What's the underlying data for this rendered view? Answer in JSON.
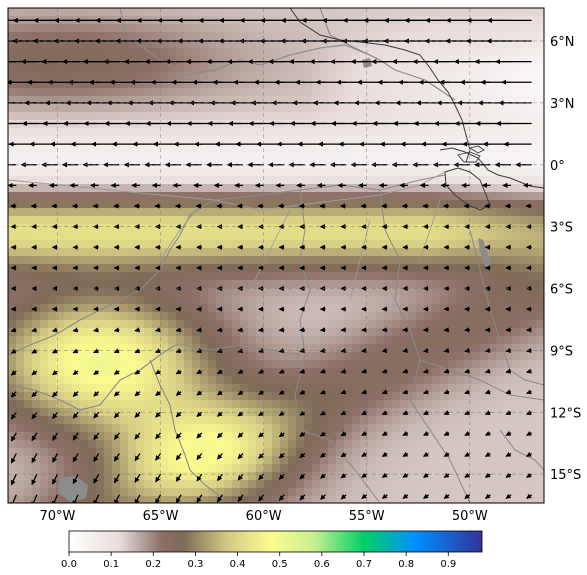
{
  "map": {
    "projection": "plate-carree",
    "extent": {
      "lon_min": -72.4,
      "lon_max": -46.4,
      "lat_min": -16.4,
      "lat_max": 7.6
    },
    "longitude_labels": [
      {
        "lon": -70,
        "label": "70°W"
      },
      {
        "lon": -65,
        "label": "65°W"
      },
      {
        "lon": -60,
        "label": "60°W"
      },
      {
        "lon": -55,
        "label": "55°W"
      },
      {
        "lon": -50,
        "label": "50°W"
      }
    ],
    "latitude_labels": [
      {
        "lat": 6,
        "label": "6°N"
      },
      {
        "lat": 3,
        "label": "3°N"
      },
      {
        "lat": 0,
        "label": "0°"
      },
      {
        "lat": -3,
        "label": "3°S"
      },
      {
        "lat": -6,
        "label": "6°S"
      },
      {
        "lat": -9,
        "label": "9°S"
      },
      {
        "lat": -12,
        "label": "12°S"
      },
      {
        "lat": -15,
        "label": "15°S"
      }
    ],
    "gridlines": true,
    "field": "wind magnitude (shaded) with wind vectors (quiver)",
    "vector_color": "#000000",
    "border_color": "#8a8a8a",
    "coast_color": "#3a3a3a",
    "lake_color": "#8c8c8c"
  },
  "colorbar": {
    "orientation": "horizontal",
    "placement": "bottom",
    "vmin": 0.0,
    "vmax": 0.98,
    "ticks": [
      {
        "value": 0.0,
        "label": "0.0"
      },
      {
        "value": 0.1,
        "label": "0.1"
      },
      {
        "value": 0.2,
        "label": "0.2"
      },
      {
        "value": 0.3,
        "label": "0.3"
      },
      {
        "value": 0.4,
        "label": "0.4"
      },
      {
        "value": 0.5,
        "label": "0.5"
      },
      {
        "value": 0.6,
        "label": "0.6"
      },
      {
        "value": 0.7,
        "label": "0.7"
      },
      {
        "value": 0.8,
        "label": "0.8"
      },
      {
        "value": 0.9,
        "label": "0.9"
      }
    ],
    "colormap": "terrain_r",
    "stops": [
      {
        "value": 0.0,
        "color": "#ffffff"
      },
      {
        "value": 0.12,
        "color": "#e7dcda"
      },
      {
        "value": 0.22,
        "color": "#8c6f66"
      },
      {
        "value": 0.27,
        "color": "#7f6a57"
      },
      {
        "value": 0.38,
        "color": "#d6cc85"
      },
      {
        "value": 0.48,
        "color": "#fdfb90"
      },
      {
        "value": 0.58,
        "color": "#c8f090"
      },
      {
        "value": 0.7,
        "color": "#00d066"
      },
      {
        "value": 0.82,
        "color": "#0090ff"
      },
      {
        "value": 0.98,
        "color": "#333399"
      }
    ]
  }
}
